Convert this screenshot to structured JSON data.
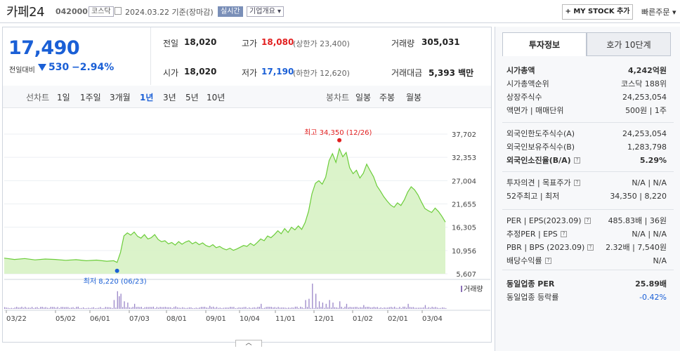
{
  "header": {
    "name": "카페24",
    "code": "042000",
    "market": "코스닥",
    "date": "2024.03.22  기준(장마감)",
    "realtime": "실시간",
    "corp": "기업개요 ▾",
    "mystock": "+ MY STOCK 추가",
    "quick": "빠른주문 ▾"
  },
  "quote": {
    "price": "17,490",
    "compare_label": "전일대비",
    "change": "530",
    "pct": "−2.94%",
    "prev_label": "전일",
    "prev": "18,020",
    "high_label": "고가",
    "high": "18,080",
    "upper": "(상한가 23,400)",
    "vol_label": "거래량",
    "vol": "305,031",
    "open_label": "시가",
    "open": "18,020",
    "low_label": "저가",
    "low": "17,190",
    "lower": "(하한가 12,620)",
    "amt_label": "거래대금",
    "amt": "5,393 백만"
  },
  "tabs": {
    "line_label": "선차트",
    "line_periods": [
      "1일",
      "1주일",
      "3개월",
      "1년",
      "3년",
      "5년",
      "10년"
    ],
    "active": "1년",
    "candle_label": "봉차트",
    "candle_periods": [
      "일봉",
      "주봉",
      "월봉"
    ]
  },
  "chart_data": {
    "type": "area",
    "y_ticks": [
      "37,702",
      "32,353",
      "27,004",
      "21,655",
      "16,305",
      "10,956",
      "5,607"
    ],
    "ylim": [
      5607,
      37702
    ],
    "x_ticks": [
      "03/22",
      "05/02",
      "06/01",
      "07/03",
      "08/01",
      "09/01",
      "10/04",
      "11/01",
      "12/01",
      "01/02",
      "02/01",
      "03/04"
    ],
    "max_label": "최고 34,350 (12/26)",
    "min_label": "최저 8,220 (06/23)",
    "volume_label": "거래량",
    "colors": {
      "line": "#6ccd3a",
      "fill": "#d7f2c4",
      "max": "#e21f1f",
      "min": "#1a5fd6"
    }
  },
  "sidebar": {
    "tab_active": "투자정보",
    "tab_other": "호가 10단계",
    "rows1": [
      {
        "k": "시가총액",
        "v": "4,242억원"
      },
      {
        "k": "시가총액순위",
        "v": "코스닥 188위"
      },
      {
        "k": "상장주식수",
        "v": "24,253,054"
      },
      {
        "k": "액면가 | 매매단위",
        "v": "500원 | 1주"
      }
    ],
    "rows2": [
      {
        "k": "외국인한도주식수(A)",
        "v": "24,253,054"
      },
      {
        "k": "외국인보유주식수(B)",
        "v": "1,283,798"
      },
      {
        "k": "외국인소진율(B/A)",
        "v": "5.29%"
      }
    ],
    "rows3": [
      {
        "k": "투자의견 | 목표주가",
        "v": "N/A | N/A"
      },
      {
        "k": "52주최고 | 최저",
        "v": "34,350 | 8,220"
      }
    ],
    "rows4": [
      {
        "k": "PER | EPS(2023.09)",
        "v": "485.83배 | 36원"
      },
      {
        "k": "추정PER | EPS",
        "v": "N/A | N/A"
      },
      {
        "k": "PBR | BPS (2023.09)",
        "v": "2.32배 | 7,540원"
      },
      {
        "k": "배당수익률",
        "v": "N/A"
      }
    ],
    "rows5": [
      {
        "k": "동일업종 PER",
        "v": "25.89배"
      },
      {
        "k": "동일업종 등락률",
        "v": "-0.42%"
      }
    ]
  },
  "collapse_label": "︿"
}
